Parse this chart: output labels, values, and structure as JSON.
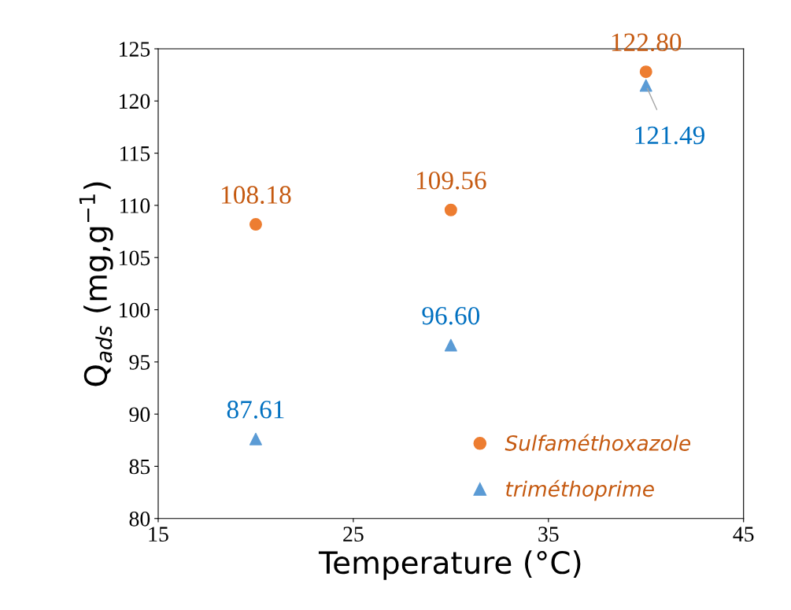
{
  "chart_data": {
    "type": "scatter",
    "xlabel": "Temperature (°C)",
    "ylabel": "Q$_{ads}$ (mg,g$^{−1}$)",
    "xlim": [
      15,
      45
    ],
    "xticks": [
      15,
      25,
      35,
      45
    ],
    "ylim": [
      80,
      125
    ],
    "yticks": [
      80,
      85,
      90,
      95,
      100,
      105,
      110,
      115,
      120,
      125
    ],
    "grid": false,
    "legend": "bottom",
    "series": [
      {
        "name": "Sulfaméthoxazole",
        "color": "#ed7d31",
        "marker": "circle",
        "x": [
          20,
          30,
          40
        ],
        "values": [
          108.18,
          109.56,
          122.8
        ],
        "value_labels": [
          "108.18",
          "109.56",
          "122.80"
        ]
      },
      {
        "name": "triméthoprime",
        "color": "#5b9bd5",
        "marker": "triangle",
        "x": [
          20,
          30,
          40
        ],
        "values": [
          87.61,
          96.6,
          121.49
        ],
        "value_labels": [
          "87.61",
          "96.60",
          "121.49"
        ]
      }
    ]
  }
}
